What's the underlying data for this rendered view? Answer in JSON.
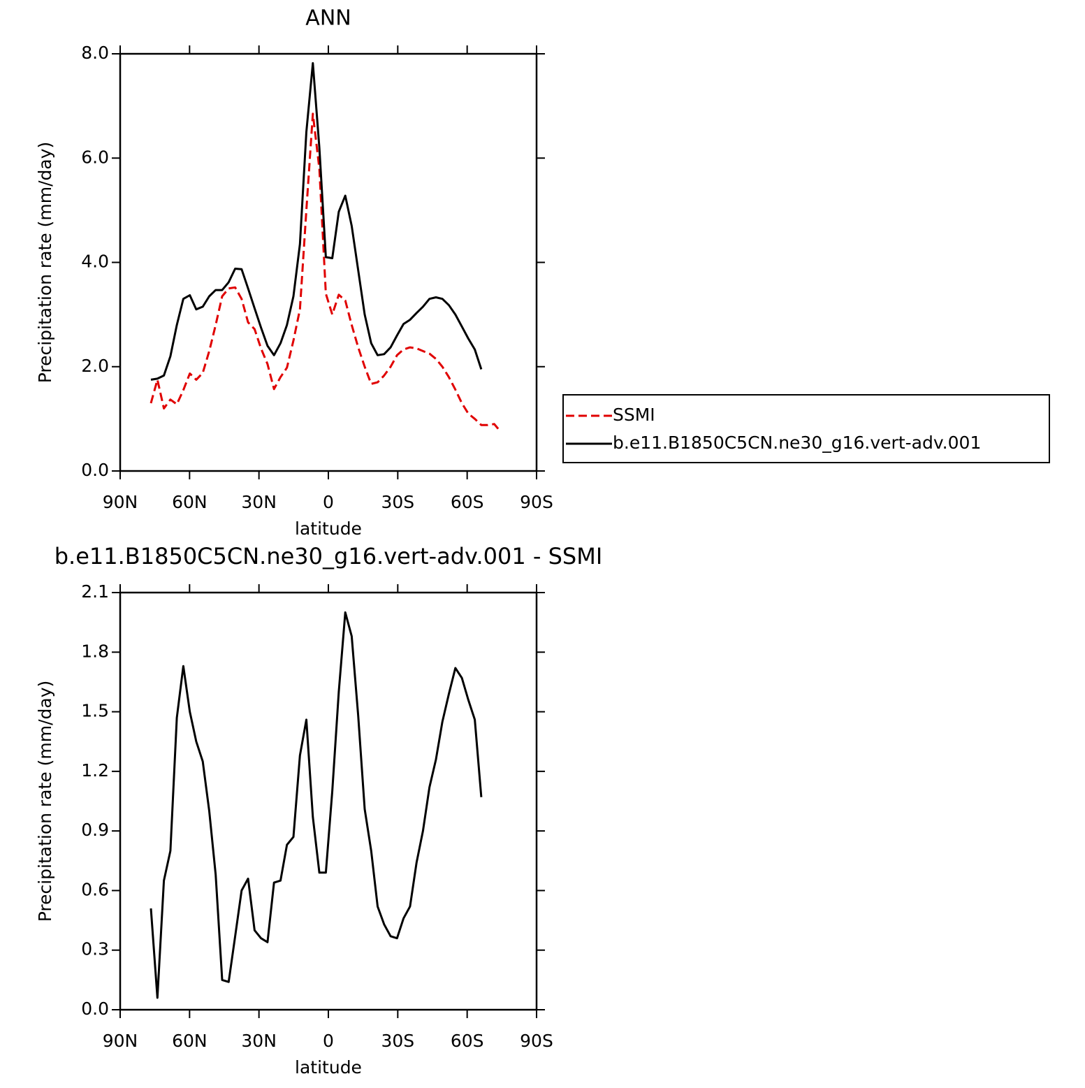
{
  "chart_data": [
    {
      "type": "line",
      "title": "ANN",
      "xlabel": "latitude",
      "ylabel": "Precipitation rate (mm/day)",
      "xlim": [
        90,
        -90
      ],
      "ylim": [
        0,
        8
      ],
      "xticks": [
        {
          "value": 90,
          "label": "90N"
        },
        {
          "value": 60,
          "label": "60N"
        },
        {
          "value": 30,
          "label": "30N"
        },
        0,
        {
          "value": -30,
          "label": "30S"
        },
        {
          "value": -60,
          "label": "60S"
        },
        {
          "value": -90,
          "label": "90S"
        }
      ],
      "yticks": [
        {
          "value": 0,
          "label": "0.0"
        },
        {
          "value": 2,
          "label": "2.0"
        },
        {
          "value": 4,
          "label": "4.0"
        },
        {
          "value": 6,
          "label": "6.0"
        },
        {
          "value": 8,
          "label": "8.0"
        }
      ],
      "legend": "right",
      "series": [
        {
          "name": "SSMI",
          "color": "#e00000",
          "line_style": "dashed",
          "x": [
            76.7,
            73.9,
            71.1,
            68.3,
            65.5,
            62.7,
            59.9,
            57.1,
            54.3,
            51.5,
            48.7,
            45.9,
            43.1,
            40.3,
            37.5,
            34.7,
            31.9,
            29.1,
            26.3,
            23.5,
            20.7,
            17.9,
            15.1,
            12.3,
            9.5,
            6.7,
            3.9,
            1.1,
            -1.7,
            -4.5,
            -7.3,
            -10.1,
            -12.9,
            -15.7,
            -18.5,
            -21.3,
            -24.1,
            -26.9,
            -29.7,
            -32.5,
            -35.3,
            -38.1,
            -40.9,
            -43.7,
            -46.5,
            -49.3,
            -52.1,
            -54.9,
            -57.7,
            -60.5,
            -63.3,
            -66.1,
            -68.9,
            -71.7,
            -74.5
          ],
          "values": [
            1.3,
            1.75,
            1.2,
            1.37,
            1.28,
            1.55,
            1.87,
            1.75,
            1.88,
            2.3,
            2.8,
            3.35,
            3.5,
            3.52,
            3.3,
            2.85,
            2.72,
            2.35,
            2.05,
            1.57,
            1.8,
            1.98,
            2.5,
            3.1,
            5.0,
            6.85,
            5.8,
            3.4,
            3.0,
            3.38,
            3.27,
            2.8,
            2.37,
            2.0,
            1.67,
            1.7,
            1.83,
            2.0,
            2.22,
            2.33,
            2.37,
            2.35,
            2.3,
            2.25,
            2.15,
            2.0,
            1.8,
            1.56,
            1.3,
            1.1,
            1.0,
            0.88,
            0.88,
            0.9,
            0.75
          ]
        },
        {
          "name": "b.e11.B1850C5CN.ne30_g16.vert-adv.001",
          "color": "#000000",
          "line_style": "solid",
          "x": [
            76.7,
            73.9,
            71.1,
            68.3,
            65.5,
            62.7,
            59.9,
            57.1,
            54.3,
            51.5,
            48.7,
            45.9,
            43.1,
            40.3,
            37.5,
            34.7,
            31.9,
            29.1,
            26.3,
            23.5,
            20.7,
            17.9,
            15.1,
            12.3,
            9.5,
            6.7,
            3.9,
            1.1,
            -1.7,
            -4.5,
            -7.3,
            -10.1,
            -12.9,
            -15.7,
            -18.5,
            -21.3,
            -24.1,
            -26.9,
            -29.7,
            -32.5,
            -35.3,
            -38.1,
            -40.9,
            -43.7,
            -46.5,
            -49.3,
            -52.1,
            -54.9,
            -57.7,
            -60.5,
            -63.3,
            -66.1
          ],
          "values": [
            1.75,
            1.77,
            1.83,
            2.2,
            2.8,
            3.3,
            3.37,
            3.1,
            3.15,
            3.35,
            3.47,
            3.47,
            3.62,
            3.88,
            3.87,
            3.5,
            3.12,
            2.75,
            2.4,
            2.22,
            2.45,
            2.8,
            3.35,
            4.35,
            6.5,
            7.82,
            6.2,
            4.1,
            4.08,
            4.97,
            5.28,
            4.7,
            3.85,
            3.0,
            2.45,
            2.22,
            2.24,
            2.37,
            2.6,
            2.82,
            2.9,
            3.03,
            3.15,
            3.3,
            3.33,
            3.3,
            3.18,
            3.0,
            2.77,
            2.54,
            2.33,
            1.95
          ]
        }
      ]
    },
    {
      "type": "line",
      "title": "b.e11.B1850C5CN.ne30_g16.vert-adv.001 - SSMI",
      "xlabel": "latitude",
      "ylabel": "Precipitation rate (mm/day)",
      "xlim": [
        90,
        -90
      ],
      "ylim": [
        0,
        2.1
      ],
      "xticks": [
        {
          "value": 90,
          "label": "90N"
        },
        {
          "value": 60,
          "label": "60N"
        },
        {
          "value": 30,
          "label": "30N"
        },
        0,
        {
          "value": -30,
          "label": "30S"
        },
        {
          "value": -60,
          "label": "60S"
        },
        {
          "value": -90,
          "label": "90S"
        }
      ],
      "yticks": [
        {
          "value": 0,
          "label": "0.0"
        },
        0.3,
        0.6,
        0.9,
        1.2,
        1.5,
        1.8,
        2.1
      ],
      "series": [
        {
          "color": "#000000",
          "line_style": "solid",
          "x": [
            76.7,
            73.9,
            71.1,
            68.3,
            65.5,
            62.7,
            59.9,
            57.1,
            54.3,
            51.5,
            48.7,
            45.9,
            43.1,
            40.3,
            37.5,
            34.7,
            31.9,
            29.1,
            26.3,
            23.5,
            20.7,
            17.9,
            15.1,
            12.3,
            9.5,
            6.7,
            3.9,
            1.1,
            -1.7,
            -4.5,
            -7.3,
            -10.1,
            -12.9,
            -15.7,
            -18.5,
            -21.3,
            -24.1,
            -26.9,
            -29.7,
            -32.5,
            -35.3,
            -38.1,
            -40.9,
            -43.7,
            -46.5,
            -49.3,
            -52.1,
            -54.9,
            -57.7,
            -60.5,
            -63.3,
            -66.1
          ],
          "values": [
            0.51,
            0.06,
            0.65,
            0.8,
            1.47,
            1.73,
            1.5,
            1.35,
            1.25,
            1.0,
            0.68,
            0.15,
            0.14,
            0.37,
            0.6,
            0.66,
            0.4,
            0.36,
            0.34,
            0.64,
            0.65,
            0.83,
            0.87,
            1.28,
            1.46,
            0.97,
            0.69,
            0.69,
            1.1,
            1.6,
            2.0,
            1.88,
            1.48,
            1.01,
            0.8,
            0.52,
            0.43,
            0.37,
            0.36,
            0.46,
            0.52,
            0.74,
            0.9,
            1.12,
            1.26,
            1.45,
            1.59,
            1.72,
            1.67,
            1.56,
            1.46,
            1.07
          ]
        }
      ]
    }
  ]
}
